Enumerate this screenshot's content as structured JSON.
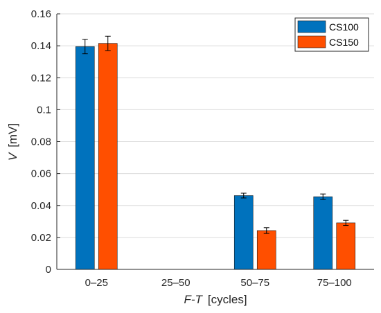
{
  "chart_data": {
    "type": "bar",
    "categories": [
      "0–25",
      "25–50",
      "50–75",
      "75–100"
    ],
    "series": [
      {
        "name": "CS100",
        "color": "#0072BD",
        "values": [
          0.1395,
          null,
          0.0462,
          0.0455
        ],
        "errors": [
          0.0045,
          null,
          0.0015,
          0.0017
        ]
      },
      {
        "name": "CS150",
        "color": "#FF4F00",
        "values": [
          0.1415,
          null,
          0.0243,
          0.0291
        ],
        "errors": [
          0.0045,
          null,
          0.0018,
          0.0016
        ]
      }
    ],
    "yticks": [
      "0",
      "0.02",
      "0.04",
      "0.06",
      "0.08",
      "0.1",
      "0.12",
      "0.14",
      "0.16"
    ],
    "ylim": [
      0,
      0.16
    ],
    "ylabel_var": "V",
    "ylabel_unit": "[mV]",
    "xlabel_var": "F-T",
    "xlabel_unit": "[cycles]",
    "grid": "horizontal",
    "legend_position": "top-right"
  }
}
